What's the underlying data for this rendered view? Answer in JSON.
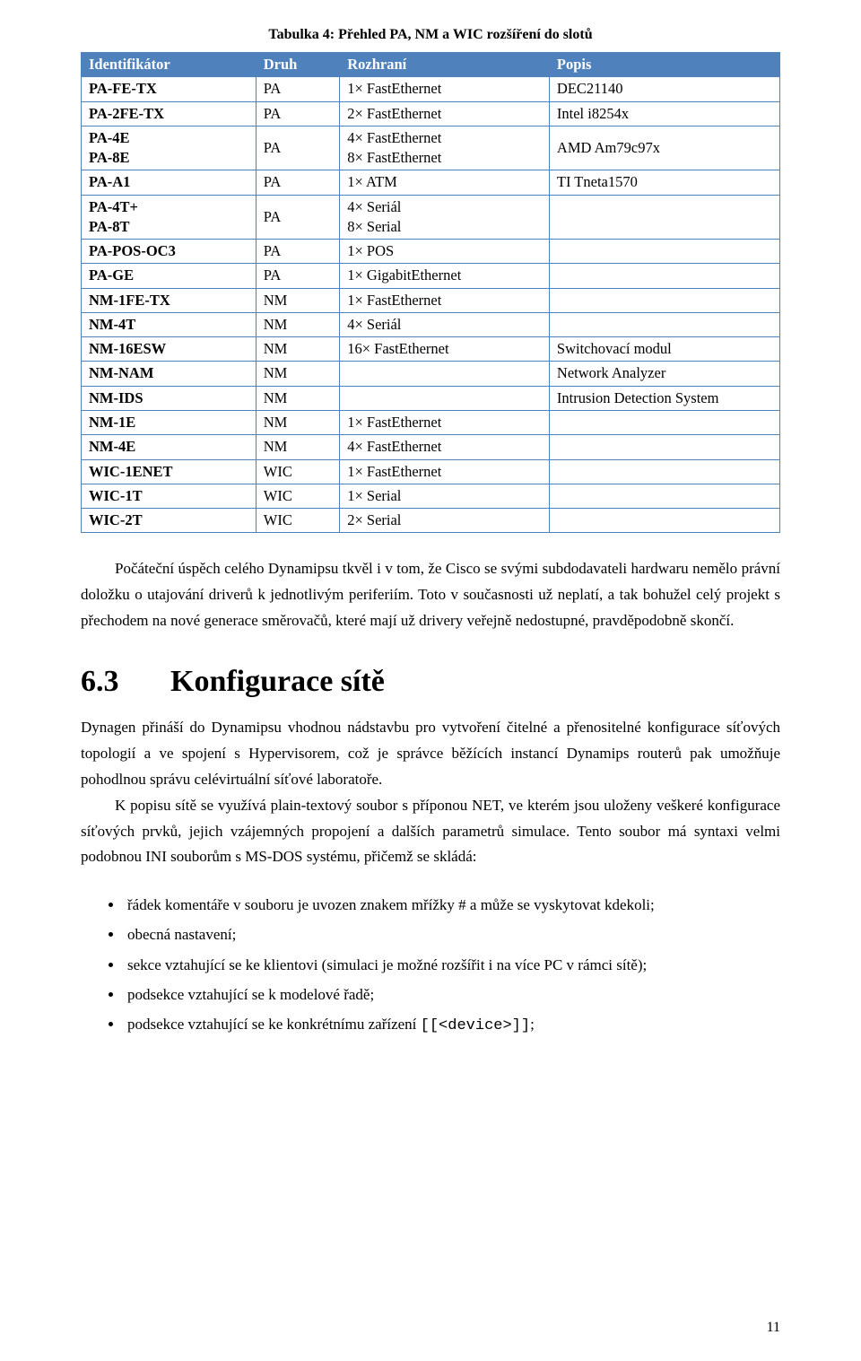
{
  "tableCaption": "Tabulka 4: Přehled PA, NM a WIC rozšíření do slotů",
  "table": {
    "headers": [
      "Identifikátor",
      "Druh",
      "Rozhraní",
      "Popis"
    ],
    "rows": [
      {
        "id": "PA-FE-TX",
        "druh": "PA",
        "rozhrani": "1× FastEthernet",
        "popis": "DEC21140"
      },
      {
        "id": "PA-2FE-TX",
        "druh": "PA",
        "rozhrani": "2× FastEthernet",
        "popis": "Intel i8254x"
      },
      {
        "id": "PA-4E\nPA-8E",
        "druh": "PA",
        "rozhrani": "4× FastEthernet\n8× FastEthernet",
        "popis": "AMD Am79c97x"
      },
      {
        "id": "PA-A1",
        "druh": "PA",
        "rozhrani": "1× ATM",
        "popis": "TI Tneta1570"
      },
      {
        "id": "PA-4T+\nPA-8T",
        "druh": "PA",
        "rozhrani": "4× Seriál\n8× Serial",
        "popis": ""
      },
      {
        "id": "PA-POS-OC3",
        "druh": "PA",
        "rozhrani": "1× POS",
        "popis": ""
      },
      {
        "id": "PA-GE",
        "druh": "PA",
        "rozhrani": "1× GigabitEthernet",
        "popis": ""
      },
      {
        "id": "NM-1FE-TX",
        "druh": "NM",
        "rozhrani": "1× FastEthernet",
        "popis": ""
      },
      {
        "id": "NM-4T",
        "druh": "NM",
        "rozhrani": "4× Seriál",
        "popis": ""
      },
      {
        "id": "NM-16ESW",
        "druh": "NM",
        "rozhrani": "16× FastEthernet",
        "popis": "Switchovací modul"
      },
      {
        "id": "NM-NAM",
        "druh": "NM",
        "rozhrani": "",
        "popis": "Network Analyzer"
      },
      {
        "id": "NM-IDS",
        "druh": "NM",
        "rozhrani": "",
        "popis": "Intrusion Detection System"
      },
      {
        "id": "NM-1E",
        "druh": "NM",
        "rozhrani": "1× FastEthernet",
        "popis": ""
      },
      {
        "id": "NM-4E",
        "druh": "NM",
        "rozhrani": "4× FastEthernet",
        "popis": ""
      },
      {
        "id": "WIC-1ENET",
        "druh": "WIC",
        "rozhrani": "1× FastEthernet",
        "popis": ""
      },
      {
        "id": "WIC-1T",
        "druh": "WIC",
        "rozhrani": "1× Serial",
        "popis": ""
      },
      {
        "id": "WIC-2T",
        "druh": "WIC",
        "rozhrani": "2× Serial",
        "popis": ""
      }
    ],
    "colWidths": [
      "25%",
      "12%",
      "30%",
      "33%"
    ],
    "headerBg": "#4f81bd",
    "headerFg": "#ffffff",
    "borderColor": "#4f81bd"
  },
  "para1": "Počáteční úspěch celého Dynamipsu tkvěl i v tom, že Cisco se svými subdodavateli hardwaru nemělo právní doložku o utajování driverů k jednotlivým periferiím. Toto v současnosti už neplatí, a tak bohužel celý projekt s přechodem na nové generace směrovačů, které mají už drivery veřejně nedostupné, pravděpodobně skončí.",
  "section": {
    "num": "6.3",
    "title": "Konfigurace sítě"
  },
  "para2": "Dynagen přináší do Dynamipsu vhodnou nádstavbu pro vytvoření čitelné a přenositelné konfigurace síťových topologií a ve spojení s Hypervisorem, což je správce běžících instancí Dynamips routerů pak umožňuje pohodlnou správu celévirtuální síťové laboratoře.",
  "para3": "K popisu sítě se využívá plain-textový soubor s příponou NET, ve kterém jsou uloženy veškeré konfigurace síťových prvků, jejich vzájemných propojení a dalších parametrů simulace. Tento soubor má syntaxi velmi podobnou INI souborům s MS-DOS systému, přičemž se skládá:",
  "bullets": [
    "řádek komentáře v souboru je uvozen znakem mřížky # a může se vyskytovat kdekoli;",
    "obecná nastavení;",
    "sekce vztahující se ke klientovi (simulaci je možné rozšířit i na více PC v rámci sítě);",
    "podsekce vztahující se k modelové řadě;"
  ],
  "bullet5Prefix": "podsekce vztahující se ke konkrétnímu zařízení ",
  "bullet5Code": "[[<device>]]",
  "bullet5Suffix": ";",
  "pageNumber": "11",
  "styling": {
    "pageWidth": 960,
    "pageHeight": 1517,
    "bodyFontSize": 17,
    "headingFontSize": 34,
    "captionFontSize": 16,
    "tableFontSize": 16.5,
    "background": "#ffffff",
    "textColor": "#000000"
  }
}
